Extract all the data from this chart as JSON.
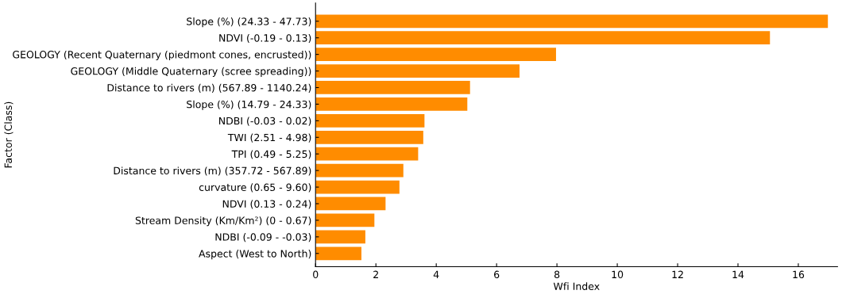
{
  "chart_data": {
    "type": "bar",
    "orientation": "horizontal",
    "xlabel": "Wfi Index",
    "ylabel": "Factor (Class)",
    "categories": [
      "Slope (%) (24.33 - 47.73)",
      "NDVI (-0.19 - 0.13)",
      "GEOLOGY (Recent Quaternary (piedmont cones, encrusted))",
      "GEOLOGY (Middle Quaternary (scree spreading))",
      "Distance to rivers (m) (567.89 - 1140.24)",
      "Slope (%) (14.79 - 24.33)",
      "NDBI (-0.03 - 0.02)",
      "TWI (2.51 - 4.98)",
      "TPI (0.49 - 5.25)",
      "Distance to rivers (m) (357.72 - 567.89)",
      "curvature (0.65 - 9.60)",
      "NDVI (0.13 - 0.24)",
      "Stream Density (Km/Km²) (0 - 0.67)",
      "NDBI (-0.09 - -0.03)",
      "Aspect (West to North)"
    ],
    "values": [
      16.98,
      15.06,
      7.97,
      6.76,
      5.12,
      5.03,
      3.61,
      3.57,
      3.4,
      2.91,
      2.78,
      2.32,
      1.95,
      1.65,
      1.52
    ],
    "color": "#ff8c00",
    "xlim": [
      0,
      17.3
    ],
    "xticks": [
      0,
      2,
      4,
      6,
      8,
      10,
      12,
      14,
      16
    ],
    "grid": false,
    "legend": false
  }
}
